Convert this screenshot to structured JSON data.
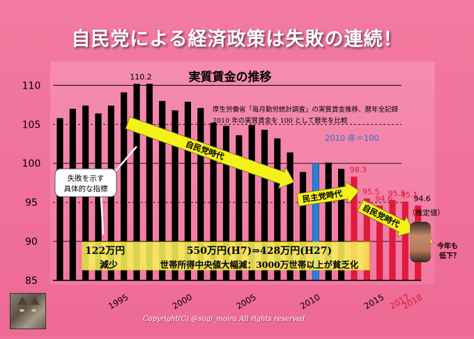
{
  "title": "自民党による経済政策は失敗の連続！",
  "copyright": "Copyright(C) @sugi_moira All rights reserved.",
  "chart_data": {
    "type": "bar",
    "title": "実質賃金の推移",
    "note_lines": [
      "厚生労働省「毎月勤労統計調査」の実質賃金推移、暦年全記録",
      "2010 年の実質賃金を 100 として暦年を比較"
    ],
    "ylim": [
      85,
      112
    ],
    "yticks": [
      85,
      90,
      95,
      100,
      105,
      110
    ],
    "dashed_gridlines": [
      105,
      95
    ],
    "years": [
      1990,
      1991,
      1992,
      1993,
      1994,
      1995,
      1996,
      1997,
      1998,
      1999,
      2000,
      2001,
      2002,
      2003,
      2004,
      2005,
      2006,
      2007,
      2008,
      2009,
      2010,
      2011,
      2012,
      2013,
      2014,
      2015,
      2016,
      2017,
      2018
    ],
    "values": [
      105.8,
      107.0,
      107.4,
      106.4,
      107.4,
      109.1,
      110.2,
      110.2,
      108.0,
      106.8,
      107.9,
      107.1,
      105.2,
      104.8,
      103.6,
      104.9,
      104.3,
      103.2,
      101.4,
      98.9,
      100.0,
      100.1,
      99.3,
      98.3,
      95.5,
      94.6,
      95.3,
      95.1,
      94.6
    ],
    "bar_kind": [
      "past",
      "past",
      "past",
      "past",
      "past",
      "past",
      "past",
      "past",
      "past",
      "past",
      "past",
      "past",
      "past",
      "past",
      "past",
      "past",
      "past",
      "past",
      "past",
      "past",
      "base",
      "past",
      "past",
      "ldp",
      "ldp",
      "ldp",
      "ldp",
      "ldp",
      "ldp"
    ],
    "xticks": [
      {
        "year": 1995,
        "label": "1995"
      },
      {
        "year": 2000,
        "label": "2000"
      },
      {
        "year": 2005,
        "label": "2005"
      },
      {
        "year": 2010,
        "label": "2010"
      },
      {
        "year": 2015,
        "label": "2015"
      },
      {
        "year": 2017,
        "label": "2017"
      },
      {
        "year": 2018,
        "label": "2018"
      }
    ],
    "xtick_red": [
      2017,
      2018
    ],
    "data_labels": [
      {
        "year": 1996,
        "label": "110.2",
        "color": "#000000"
      },
      {
        "year": 2013,
        "label": "98.3",
        "color": "#e0143c"
      },
      {
        "year": 2014,
        "label": "95.5",
        "color": "#e0143c"
      },
      {
        "year": 2015,
        "label": "94.6",
        "color": "#e0143c"
      },
      {
        "year": 2016,
        "label": "95.3",
        "color": "#e0143c"
      },
      {
        "year": 2017,
        "label": "95.1",
        "color": "#e0143c"
      },
      {
        "year": 2018,
        "label": "94.6",
        "color": "#000000"
      }
    ],
    "base_label": "2010 年＝100",
    "estimate_label": "（推定値）",
    "arrows": [
      {
        "label": "自民党時代",
        "from": [
          1995.3,
          105.2
        ],
        "to": [
          2008.3,
          97.6
        ]
      },
      {
        "label": "民主党時代",
        "from": [
          2008.6,
          95.3
        ],
        "to": [
          2013.4,
          96.5
        ]
      },
      {
        "label": "自民党時代",
        "from": [
          2013.5,
          94.6
        ],
        "to": [
          2017.6,
          91.2
        ]
      },
      {
        "label": "",
        "from": [
          2017.6,
          91.0
        ],
        "to": [
          2019.2,
          89.8
        ]
      }
    ],
    "callout": {
      "lines": [
        "失敗を示す",
        "具体的な指標"
      ]
    },
    "bottom_box": {
      "left_top": "122万円",
      "left_bottom": "減少",
      "main_top": "550万円(H7)⇒428万円(H27)",
      "main_bottom": "世帯所得中央値大幅減：3000万世帯以上が貧乏化"
    },
    "side_note": [
      "今年も",
      "低下？"
    ],
    "colors": {
      "past": "#000000",
      "base": "#2a7fd4",
      "ldp": "#e01a3c",
      "arrow": "#f4f21a",
      "highlight": "#f8f05a",
      "grid": "#000000"
    }
  }
}
